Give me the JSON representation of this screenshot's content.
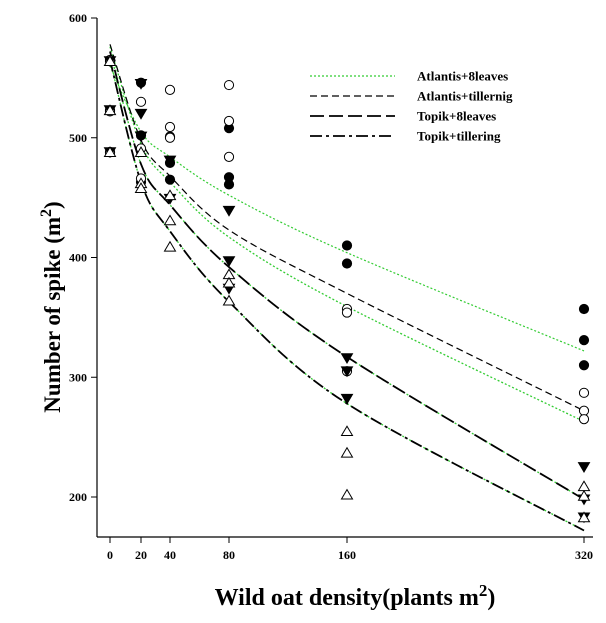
{
  "chart_data": {
    "type": "scatter",
    "title": "",
    "xlabel": "Wild oat density(plants m",
    "xlabel_sup": "2",
    "xlabel_suffix": ")",
    "ylabel": "Number of spike (m",
    "ylabel_sup": "2",
    "ylabel_suffix": ")",
    "x_scale": "sqrt",
    "xlim": [
      0,
      320
    ],
    "ylim": [
      175,
      600
    ],
    "x_ticks": [
      0,
      20,
      40,
      80,
      160,
      320
    ],
    "y_ticks": [
      200,
      300,
      400,
      500,
      600
    ],
    "legend_position": "top-right",
    "curves": [
      {
        "name": "Atlantis+8leaves",
        "style": "dotted",
        "color": "#33cc33",
        "values": [
          [
            0,
            560
          ],
          [
            20,
            505
          ],
          [
            40,
            484
          ],
          [
            80,
            452
          ],
          [
            160,
            404
          ],
          [
            320,
            322
          ]
        ]
      },
      {
        "name": "Atlantis+tillernig",
        "style": "dashed",
        "color": "#000000",
        "values": [
          [
            0,
            578
          ],
          [
            20,
            498
          ],
          [
            40,
            468
          ],
          [
            80,
            423
          ],
          [
            160,
            370
          ],
          [
            320,
            272
          ]
        ]
      },
      {
        "name": "Topik+8leaves",
        "style": "long-dash",
        "color": "#000000",
        "values": [
          [
            0,
            572
          ],
          [
            20,
            478
          ],
          [
            40,
            444
          ],
          [
            80,
            392
          ],
          [
            160,
            317
          ],
          [
            320,
            198
          ]
        ]
      },
      {
        "name": "Topik+tillering",
        "style": "dash-dot",
        "color": "#000000",
        "values": [
          [
            0,
            565
          ],
          [
            20,
            463
          ],
          [
            40,
            422
          ],
          [
            80,
            363
          ],
          [
            160,
            278
          ],
          [
            320,
            172
          ]
        ]
      }
    ],
    "extra_curves": [
      {
        "style": "dotted",
        "color": "#33cc33",
        "values": [
          [
            0,
            576
          ],
          [
            20,
            495
          ],
          [
            40,
            463
          ],
          [
            80,
            417
          ],
          [
            160,
            359
          ],
          [
            320,
            263
          ]
        ]
      },
      {
        "style": "dotted",
        "color": "#33cc33",
        "values": [
          [
            0,
            572
          ],
          [
            20,
            478
          ],
          [
            40,
            444
          ],
          [
            80,
            392
          ],
          [
            160,
            317
          ],
          [
            320,
            198
          ]
        ]
      },
      {
        "style": "dotted",
        "color": "#33cc33",
        "values": [
          [
            0,
            565
          ],
          [
            20,
            463
          ],
          [
            40,
            422
          ],
          [
            80,
            363
          ],
          [
            160,
            278
          ],
          [
            320,
            172
          ]
        ]
      }
    ],
    "points": [
      {
        "marker": "filled-circle",
        "x": 0,
        "y": 564
      },
      {
        "marker": "filled-circle",
        "x": 0,
        "y": 523
      },
      {
        "marker": "filled-circle",
        "x": 0,
        "y": 488
      },
      {
        "marker": "filled-circle",
        "x": 20,
        "y": 546
      },
      {
        "marker": "filled-circle",
        "x": 20,
        "y": 502
      },
      {
        "marker": "filled-circle",
        "x": 20,
        "y": 463
      },
      {
        "marker": "filled-circle",
        "x": 40,
        "y": 501
      },
      {
        "marker": "filled-circle",
        "x": 40,
        "y": 479
      },
      {
        "marker": "filled-circle",
        "x": 40,
        "y": 465
      },
      {
        "marker": "filled-circle",
        "x": 80,
        "y": 508
      },
      {
        "marker": "filled-circle",
        "x": 80,
        "y": 467
      },
      {
        "marker": "filled-circle",
        "x": 80,
        "y": 461
      },
      {
        "marker": "filled-circle",
        "x": 160,
        "y": 410
      },
      {
        "marker": "filled-circle",
        "x": 160,
        "y": 395
      },
      {
        "marker": "filled-circle",
        "x": 320,
        "y": 357
      },
      {
        "marker": "filled-circle",
        "x": 320,
        "y": 331
      },
      {
        "marker": "filled-circle",
        "x": 320,
        "y": 310
      },
      {
        "marker": "open-circle",
        "x": 0,
        "y": 565
      },
      {
        "marker": "open-circle",
        "x": 0,
        "y": 522
      },
      {
        "marker": "open-circle",
        "x": 0,
        "y": 488
      },
      {
        "marker": "open-circle",
        "x": 20,
        "y": 530
      },
      {
        "marker": "open-circle",
        "x": 20,
        "y": 491
      },
      {
        "marker": "open-circle",
        "x": 20,
        "y": 466
      },
      {
        "marker": "open-circle",
        "x": 40,
        "y": 540
      },
      {
        "marker": "open-circle",
        "x": 40,
        "y": 509
      },
      {
        "marker": "open-circle",
        "x": 40,
        "y": 500
      },
      {
        "marker": "open-circle",
        "x": 80,
        "y": 544
      },
      {
        "marker": "open-circle",
        "x": 80,
        "y": 514
      },
      {
        "marker": "open-circle",
        "x": 80,
        "y": 484
      },
      {
        "marker": "open-circle",
        "x": 160,
        "y": 357
      },
      {
        "marker": "open-circle",
        "x": 160,
        "y": 354
      },
      {
        "marker": "open-circle",
        "x": 160,
        "y": 305
      },
      {
        "marker": "open-circle",
        "x": 320,
        "y": 287
      },
      {
        "marker": "open-circle",
        "x": 320,
        "y": 272
      },
      {
        "marker": "open-circle",
        "x": 320,
        "y": 265
      },
      {
        "marker": "filled-triangle-down",
        "x": 0,
        "y": 564
      },
      {
        "marker": "filled-triangle-down",
        "x": 0,
        "y": 523
      },
      {
        "marker": "filled-triangle-down",
        "x": 0,
        "y": 488
      },
      {
        "marker": "filled-triangle-down",
        "x": 20,
        "y": 545
      },
      {
        "marker": "filled-triangle-down",
        "x": 20,
        "y": 520
      },
      {
        "marker": "filled-triangle-down",
        "x": 20,
        "y": 501
      },
      {
        "marker": "filled-triangle-down",
        "x": 40,
        "y": 481
      },
      {
        "marker": "filled-triangle-down",
        "x": 40,
        "y": 449
      },
      {
        "marker": "filled-triangle-down",
        "x": 80,
        "y": 439
      },
      {
        "marker": "filled-triangle-down",
        "x": 80,
        "y": 397
      },
      {
        "marker": "filled-triangle-down",
        "x": 80,
        "y": 374
      },
      {
        "marker": "filled-triangle-down",
        "x": 160,
        "y": 316
      },
      {
        "marker": "filled-triangle-down",
        "x": 160,
        "y": 305
      },
      {
        "marker": "filled-triangle-down",
        "x": 160,
        "y": 282
      },
      {
        "marker": "filled-triangle-down",
        "x": 320,
        "y": 225
      },
      {
        "marker": "filled-triangle-down",
        "x": 320,
        "y": 198
      },
      {
        "marker": "filled-triangle-down",
        "x": 320,
        "y": 183
      },
      {
        "marker": "open-triangle-up",
        "x": 0,
        "y": 564
      },
      {
        "marker": "open-triangle-up",
        "x": 0,
        "y": 523
      },
      {
        "marker": "open-triangle-up",
        "x": 0,
        "y": 488
      },
      {
        "marker": "open-triangle-up",
        "x": 20,
        "y": 488
      },
      {
        "marker": "open-triangle-up",
        "x": 20,
        "y": 462
      },
      {
        "marker": "open-triangle-up",
        "x": 20,
        "y": 458
      },
      {
        "marker": "open-triangle-up",
        "x": 40,
        "y": 452
      },
      {
        "marker": "open-triangle-up",
        "x": 40,
        "y": 431
      },
      {
        "marker": "open-triangle-up",
        "x": 40,
        "y": 409
      },
      {
        "marker": "open-triangle-up",
        "x": 80,
        "y": 386
      },
      {
        "marker": "open-triangle-up",
        "x": 80,
        "y": 379
      },
      {
        "marker": "open-triangle-up",
        "x": 80,
        "y": 364
      },
      {
        "marker": "open-triangle-up",
        "x": 160,
        "y": 255
      },
      {
        "marker": "open-triangle-up",
        "x": 160,
        "y": 237
      },
      {
        "marker": "open-triangle-up",
        "x": 160,
        "y": 202
      },
      {
        "marker": "open-triangle-up",
        "x": 320,
        "y": 209
      },
      {
        "marker": "open-triangle-up",
        "x": 320,
        "y": 201
      },
      {
        "marker": "open-triangle-up",
        "x": 320,
        "y": 183
      }
    ]
  }
}
